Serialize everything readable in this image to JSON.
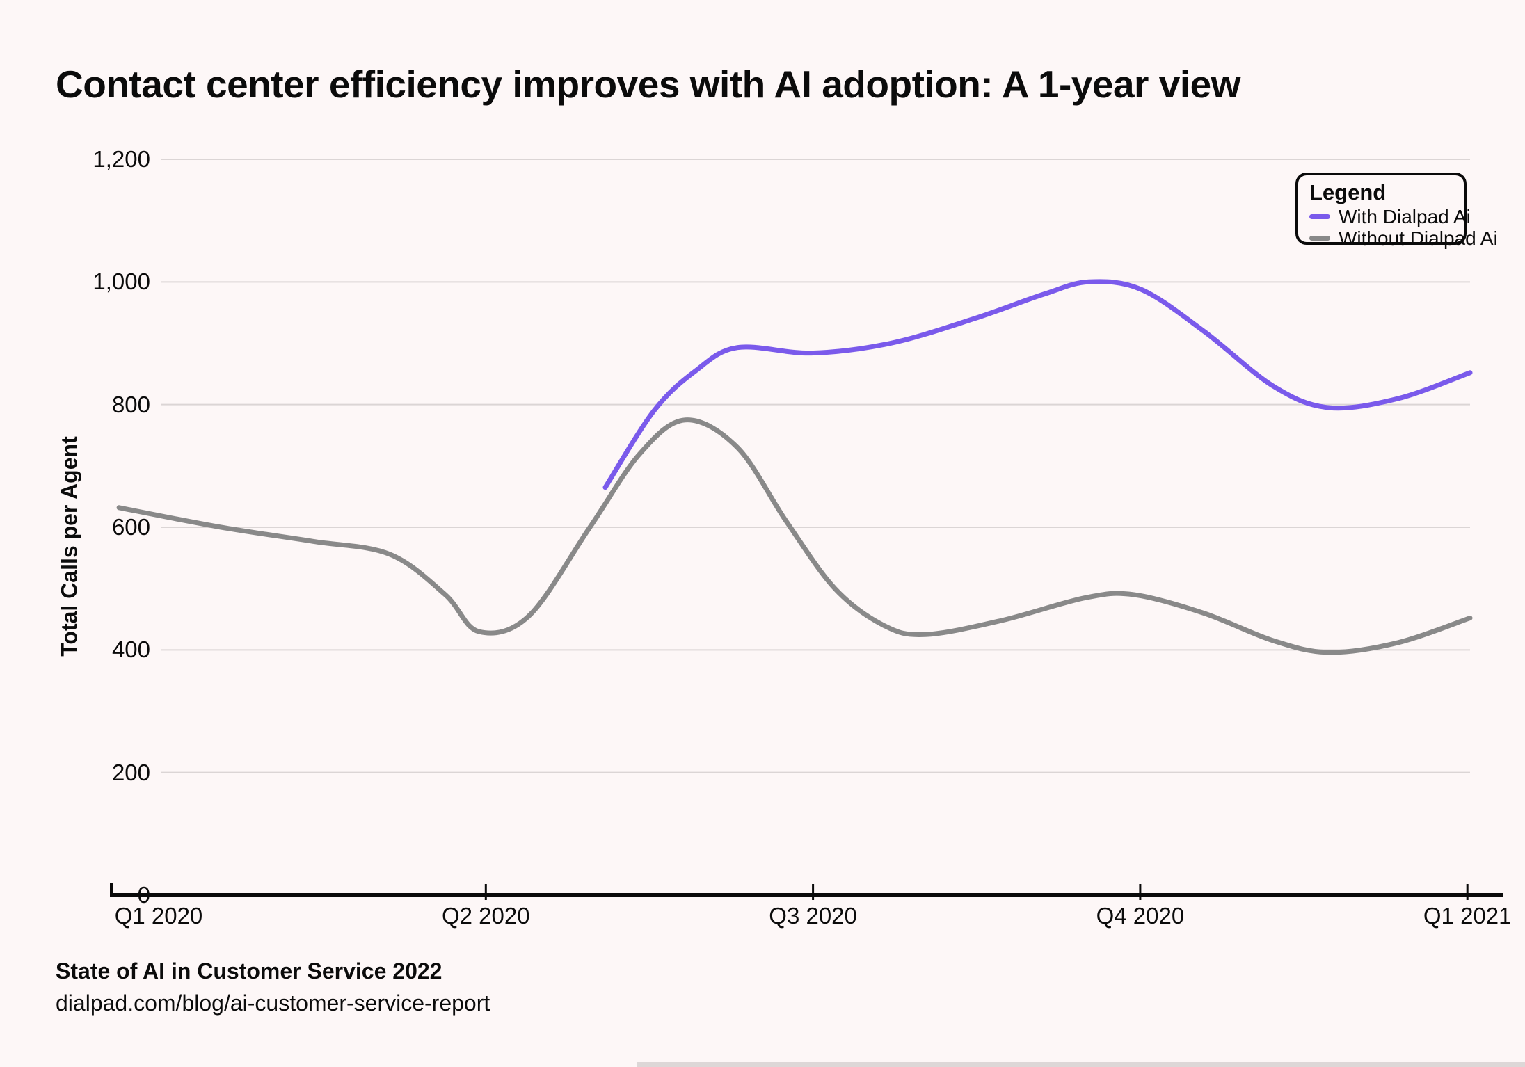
{
  "page": {
    "title": "Contact center efficiency improves with AI adoption: A 1-year view",
    "background": "#FDF7F7"
  },
  "legend": {
    "title": "Legend",
    "items": [
      {
        "label": "With Dialpad Ai",
        "color": "#7A5AEB"
      },
      {
        "label": "Without Dialpad Ai",
        "color": "#898989"
      }
    ]
  },
  "footer": {
    "source": "State of AI in Customer Service 2022",
    "url": "dialpad.com/blog/ai-customer-service-report"
  },
  "chart_data": {
    "type": "line",
    "title": "Contact center efficiency improves with AI adoption: A 1-year view",
    "xlabel": "",
    "ylabel": "Total Calls per Agent",
    "ylim": [
      0,
      1200
    ],
    "grid": true,
    "legend_position": "top-right",
    "colors": {
      "with_ai": "#7A5AEB",
      "without_ai": "#898989",
      "gridline": "#DBD5D5",
      "axis": "#0a0a0a"
    },
    "y_ticks": [
      {
        "value": 0,
        "label": "0"
      },
      {
        "value": 200,
        "label": "200"
      },
      {
        "value": 400,
        "label": "400"
      },
      {
        "value": 600,
        "label": "600"
      },
      {
        "value": 800,
        "label": "800"
      },
      {
        "value": 1000,
        "label": "1,000"
      },
      {
        "value": 1200,
        "label": "1,200"
      }
    ],
    "x_ticks": [
      {
        "position": 0,
        "label": "Q1 2020"
      },
      {
        "position": 1,
        "label": "Q2 2020"
      },
      {
        "position": 2,
        "label": "Q3 2020"
      },
      {
        "position": 3,
        "label": "Q4 2020"
      },
      {
        "position": 4,
        "label": "Q1 2021"
      }
    ],
    "x_axis_note": "x in quarter units, 0 = Q1 2020 tick, 4 = Q1 2021 tick",
    "series": [
      {
        "name": "Without Dialpad Ai",
        "color": "#898989",
        "points": [
          [
            -0.121,
            632
          ],
          [
            0.191,
            600
          ],
          [
            0.472,
            577
          ],
          [
            0.706,
            556
          ],
          [
            0.876,
            490
          ],
          [
            0.978,
            430
          ],
          [
            1.131,
            455
          ],
          [
            1.318,
            600
          ],
          [
            1.471,
            720
          ],
          [
            1.61,
            775
          ],
          [
            1.769,
            730
          ],
          [
            1.918,
            610
          ],
          [
            2.067,
            500
          ],
          [
            2.216,
            440
          ],
          [
            2.343,
            425
          ],
          [
            2.577,
            448
          ],
          [
            2.832,
            485
          ],
          [
            2.981,
            490
          ],
          [
            3.194,
            460
          ],
          [
            3.407,
            415
          ],
          [
            3.577,
            396
          ],
          [
            3.789,
            412
          ],
          [
            4.008,
            452
          ]
        ]
      },
      {
        "name": "With Dialpad Ai",
        "color": "#7A5AEB",
        "points": [
          [
            1.365,
            665
          ],
          [
            1.514,
            790
          ],
          [
            1.641,
            855
          ],
          [
            1.769,
            893
          ],
          [
            1.995,
            884
          ],
          [
            2.237,
            900
          ],
          [
            2.492,
            940
          ],
          [
            2.705,
            980
          ],
          [
            2.843,
            1000
          ],
          [
            3.002,
            988
          ],
          [
            3.194,
            920
          ],
          [
            3.407,
            830
          ],
          [
            3.577,
            795
          ],
          [
            3.789,
            810
          ],
          [
            4.008,
            852
          ]
        ]
      }
    ]
  }
}
